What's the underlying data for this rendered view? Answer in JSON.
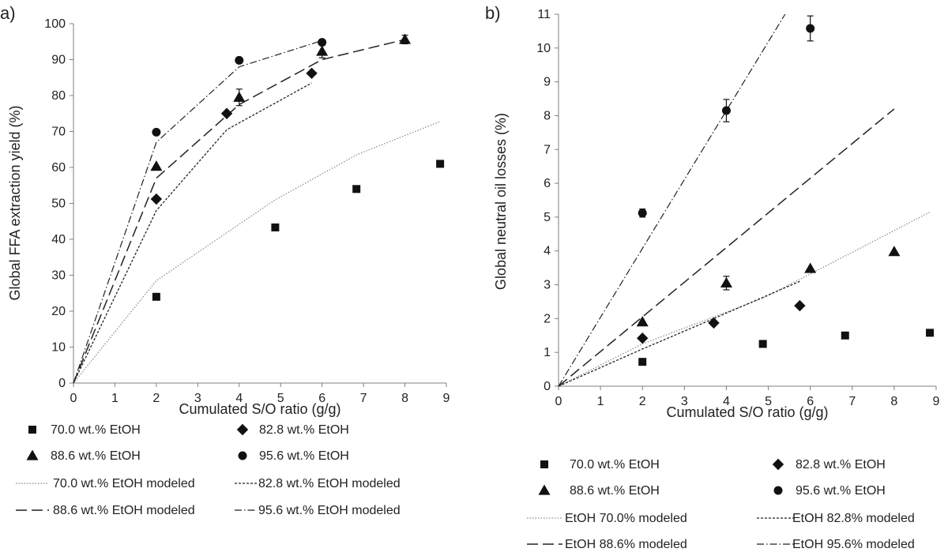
{
  "chart_data": [
    {
      "type": "scatter",
      "panel_label": "a)",
      "xlabel": "Cumulated S/O ratio (g/g)",
      "ylabel": "Global FFA extraction yield (%)",
      "xlim": [
        0,
        9
      ],
      "ylim": [
        0,
        100
      ],
      "xticks": [
        0,
        1,
        2,
        3,
        4,
        5,
        6,
        7,
        8,
        9
      ],
      "yticks": [
        0,
        10,
        20,
        30,
        40,
        50,
        60,
        70,
        80,
        90,
        100
      ],
      "grid": false,
      "series": [
        {
          "name": "70.0 wt.% EtOH",
          "marker": "square",
          "x": [
            2,
            4.87,
            6.83,
            8.85
          ],
          "y": [
            24,
            43.3,
            54,
            61
          ]
        },
        {
          "name": "82.8 wt.% EtOH",
          "marker": "diamond",
          "x": [
            2,
            3.7,
            5.75
          ],
          "y": [
            51.2,
            75,
            86.2
          ]
        },
        {
          "name": "88.6 wt.% EtOH",
          "marker": "triangle",
          "x": [
            2,
            4,
            6,
            8
          ],
          "y": [
            60.3,
            79.5,
            92.3,
            95.6
          ],
          "err": [
            0,
            2.3,
            1.8,
            1.2
          ]
        },
        {
          "name": "95.6 wt.% EtOH",
          "marker": "circle",
          "x": [
            2,
            4,
            6
          ],
          "y": [
            69.8,
            89.8,
            94.8
          ]
        }
      ],
      "models": [
        {
          "name": "70.0 wt.% EtOH modeled",
          "dash": "dotted",
          "x": [
            0,
            2,
            4.87,
            6.83,
            8.85
          ],
          "y": [
            0,
            28.5,
            51,
            63.5,
            72.8
          ]
        },
        {
          "name": "82.8 wt.% EtOH modeled",
          "dash": "short",
          "x": [
            0,
            2,
            3.7,
            5.75
          ],
          "y": [
            0,
            48,
            70.5,
            83.5
          ]
        },
        {
          "name": "88.6 wt.% EtOH modeled",
          "dash": "long",
          "x": [
            0,
            2,
            4,
            6,
            8
          ],
          "y": [
            0,
            57,
            77.5,
            90,
            95.6
          ]
        },
        {
          "name": "95.6 wt.% EtOH modeled",
          "dash": "dashdot",
          "x": [
            0,
            2,
            4,
            6
          ],
          "y": [
            0,
            67,
            88,
            95.3
          ]
        }
      ]
    },
    {
      "type": "scatter",
      "panel_label": "b)",
      "xlabel": "Cumulated S/O ratio (g/g)",
      "ylabel": "Global neutral oil losses (%)",
      "xlim": [
        0,
        9
      ],
      "ylim": [
        0,
        11
      ],
      "xticks": [
        0,
        1,
        2,
        3,
        4,
        5,
        6,
        7,
        8,
        9
      ],
      "yticks": [
        0,
        1,
        2,
        3,
        4,
        5,
        6,
        7,
        8,
        9,
        10,
        11
      ],
      "grid": false,
      "series": [
        {
          "name": "70.0 wt.% EtOH",
          "marker": "square",
          "x": [
            2,
            4.87,
            6.83,
            8.85
          ],
          "y": [
            0.72,
            1.25,
            1.5,
            1.58
          ]
        },
        {
          "name": "82.8 wt.% EtOH",
          "marker": "diamond",
          "x": [
            2,
            3.7,
            5.75
          ],
          "y": [
            1.42,
            1.87,
            2.38
          ]
        },
        {
          "name": "88.6 wt.% EtOH",
          "marker": "triangle",
          "x": [
            2,
            4,
            6,
            8
          ],
          "y": [
            1.9,
            3.05,
            3.48,
            3.98
          ],
          "err": [
            0,
            0.2,
            0,
            0
          ]
        },
        {
          "name": "95.6 wt.% EtOH",
          "marker": "circle",
          "x": [
            2,
            4,
            6
          ],
          "y": [
            5.12,
            8.15,
            10.58
          ],
          "err": [
            0.12,
            0.33,
            0.37
          ]
        }
      ],
      "models": [
        {
          "name": "EtOH 70.0% modeled",
          "dash": "dotted",
          "x": [
            0,
            2,
            4.87,
            6.83,
            8.85
          ],
          "y": [
            0,
            1.25,
            2.6,
            3.85,
            5.15
          ]
        },
        {
          "name": "EtOH 82.8% modeled",
          "dash": "short",
          "x": [
            0,
            2,
            3.7,
            5.75
          ],
          "y": [
            0,
            1.1,
            2.0,
            3.1
          ]
        },
        {
          "name": "EtOH 88.6% modeled",
          "dash": "long",
          "x": [
            0,
            8
          ],
          "y": [
            0,
            8.2
          ]
        },
        {
          "name": "EtOH 95.6% modeled",
          "dash": "dashdot",
          "x": [
            0,
            5.4
          ],
          "y": [
            0,
            11
          ]
        }
      ]
    }
  ]
}
